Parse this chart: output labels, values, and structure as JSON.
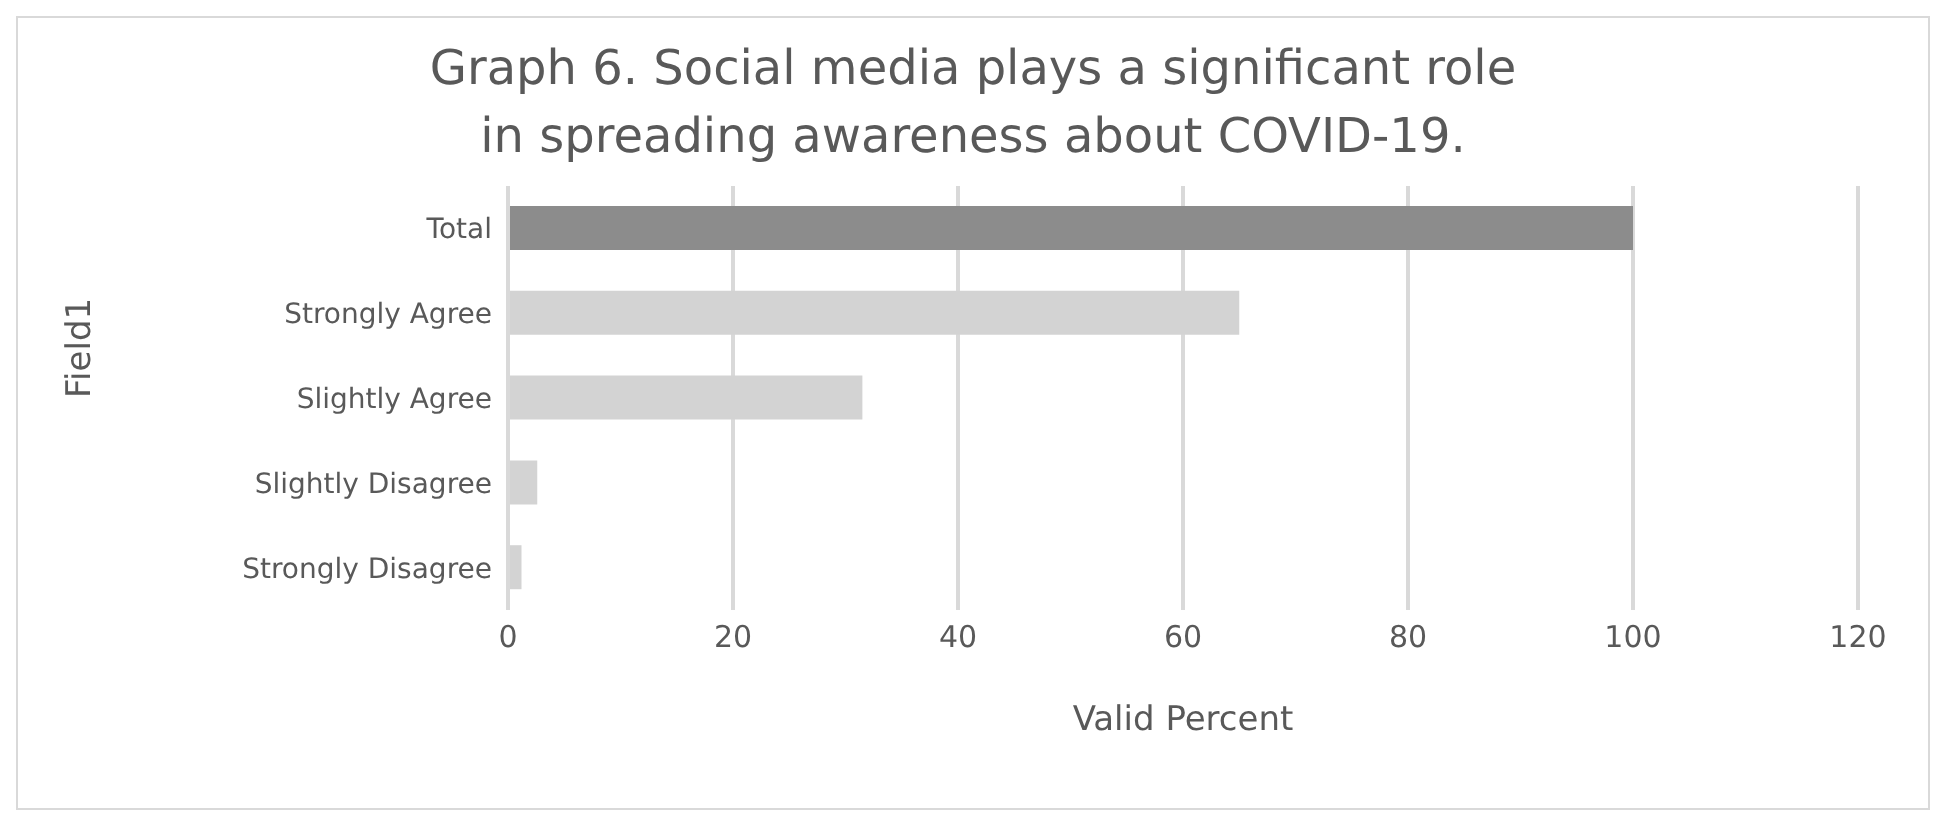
{
  "chart_data": {
    "type": "bar",
    "orientation": "horizontal",
    "title": "Graph 6. Social media plays a significant role in spreading awareness about COVID-19.",
    "xlabel": "Valid Percent",
    "ylabel": "Field1",
    "categories": [
      "Total",
      "Strongly Agree",
      "Slightly Agree",
      "Slightly Disagree",
      "Strongly Disagree"
    ],
    "values": [
      100,
      65,
      31.5,
      2.6,
      1.2
    ],
    "colors": [
      "#8c8c8c",
      "#d3d3d3",
      "#d3d3d3",
      "#d3d3d3",
      "#d3d3d3"
    ],
    "xlim": [
      0,
      120
    ],
    "xticks": [
      0,
      20,
      40,
      60,
      80,
      100,
      120
    ],
    "grid": "x",
    "legend": false
  }
}
